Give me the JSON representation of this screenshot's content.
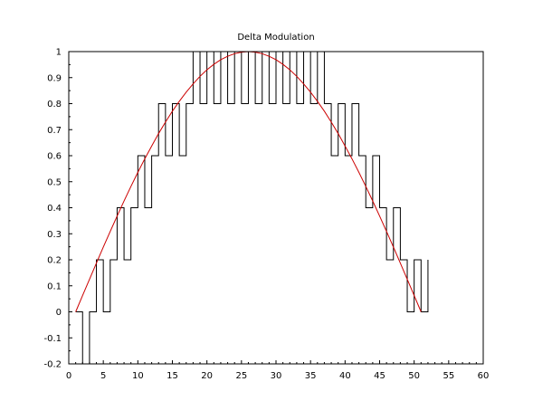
{
  "chart_data": {
    "type": "line",
    "title": "Delta Modulation",
    "xlabel": "",
    "ylabel": "",
    "xlim": [
      0,
      60
    ],
    "ylim": [
      -0.2,
      1
    ],
    "xticks": [
      "0",
      "5",
      "10",
      "15",
      "20",
      "25",
      "30",
      "35",
      "40",
      "45",
      "50",
      "55",
      "60"
    ],
    "yticks": [
      "-0.2",
      "-0.1",
      "0",
      "0.1",
      "0.2",
      "0.3",
      "0.4",
      "0.5",
      "0.6",
      "0.7",
      "0.8",
      "0.9",
      "1"
    ],
    "grid": false,
    "legend": "none",
    "series": [
      {
        "style": "step",
        "color": "#000000",
        "x": [
          1,
          2,
          3,
          4,
          5,
          6,
          7,
          8,
          9,
          10,
          11,
          12,
          13,
          14,
          15,
          16,
          17,
          18,
          19,
          20,
          21,
          22,
          23,
          24,
          25,
          26,
          27,
          28,
          29,
          30,
          31,
          32,
          33,
          34,
          35,
          36,
          37,
          38,
          39,
          40,
          41,
          42,
          43,
          44,
          45,
          46,
          47,
          48,
          49,
          50,
          51,
          52
        ],
        "values": [
          0,
          -0.2,
          0,
          0.2,
          0,
          0.2,
          0.4,
          0.2,
          0.4,
          0.6,
          0.4,
          0.6,
          0.8,
          0.6,
          0.8,
          0.6,
          0.8,
          1,
          0.8,
          1,
          0.8,
          1,
          0.8,
          1,
          0.8,
          1,
          0.8,
          1,
          0.8,
          1,
          0.8,
          1,
          0.8,
          1,
          0.8,
          1,
          0.8,
          0.6,
          0.8,
          0.6,
          0.8,
          0.6,
          0.4,
          0.6,
          0.4,
          0.2,
          0.4,
          0.2,
          0,
          0.2,
          0,
          0.2
        ]
      },
      {
        "style": "line",
        "color": "#cc0000",
        "x": [
          1,
          2,
          3,
          4,
          5,
          6,
          7,
          8,
          9,
          10,
          11,
          12,
          13,
          14,
          15,
          16,
          17,
          18,
          19,
          20,
          21,
          22,
          23,
          24,
          25,
          26,
          27,
          28,
          29,
          30,
          31,
          32,
          33,
          34,
          35,
          36,
          37,
          38,
          39,
          40,
          41,
          42,
          43,
          44,
          45,
          46,
          47,
          48,
          49,
          50,
          51
        ],
        "values": [
          0,
          0.063,
          0.125,
          0.187,
          0.249,
          0.309,
          0.368,
          0.426,
          0.482,
          0.536,
          0.588,
          0.637,
          0.685,
          0.729,
          0.771,
          0.809,
          0.844,
          0.876,
          0.905,
          0.93,
          0.951,
          0.969,
          0.982,
          0.992,
          0.998,
          1,
          0.998,
          0.992,
          0.982,
          0.969,
          0.951,
          0.93,
          0.905,
          0.876,
          0.844,
          0.809,
          0.771,
          0.729,
          0.685,
          0.637,
          0.588,
          0.536,
          0.482,
          0.426,
          0.368,
          0.309,
          0.249,
          0.187,
          0.125,
          0.063,
          0
        ]
      }
    ]
  }
}
